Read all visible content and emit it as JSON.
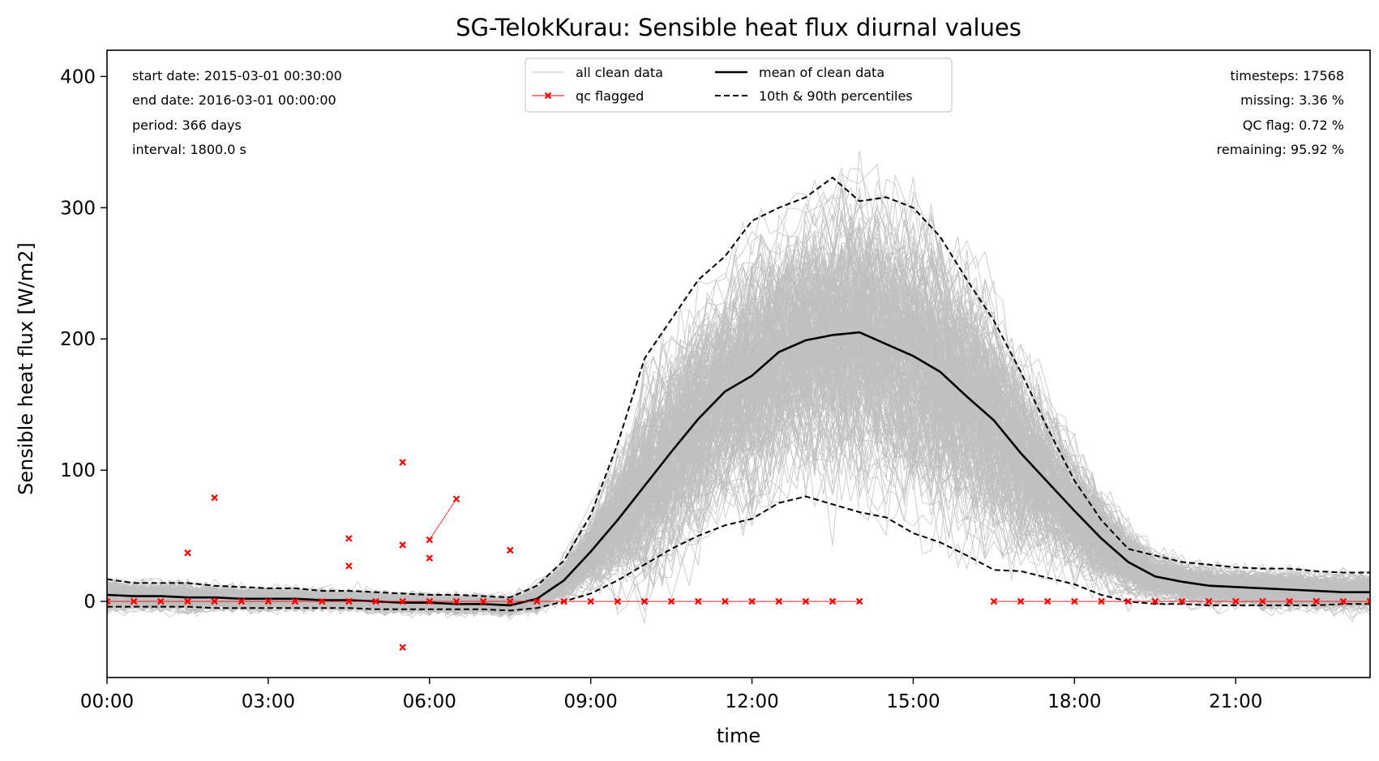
{
  "chart_data": {
    "type": "line",
    "title": "SG-TelokKurau: Sensible heat flux diurnal values",
    "xlabel": "time",
    "ylabel": "Sensible heat flux [W/m2]",
    "xlim": [
      0,
      23.5
    ],
    "ylim": [
      -58,
      420
    ],
    "x_ticks": [
      {
        "value": 0,
        "label": "00:00"
      },
      {
        "value": 3,
        "label": "03:00"
      },
      {
        "value": 6,
        "label": "06:00"
      },
      {
        "value": 9,
        "label": "09:00"
      },
      {
        "value": 12,
        "label": "12:00"
      },
      {
        "value": 15,
        "label": "15:00"
      },
      {
        "value": 18,
        "label": "18:00"
      },
      {
        "value": 21,
        "label": "21:00"
      }
    ],
    "y_ticks": [
      0,
      100,
      200,
      300,
      400
    ],
    "grid": false,
    "legend_position": "top-center",
    "colors": {
      "clean": "#c0c0c0",
      "mean": "#000000",
      "percentile": "#000000",
      "qc": "#ff0000"
    },
    "stats_left": [
      "start date: 2015-03-01 00:30:00",
      "end date: 2016-03-01 00:00:00",
      "period: 366 days",
      "interval: 1800.0 s"
    ],
    "stats_right": [
      "timesteps: 17568",
      "missing: 3.36 %",
      "QC flag: 0.72 %",
      "remaining: 95.92 %"
    ],
    "x": [
      0,
      0.5,
      1,
      1.5,
      2,
      2.5,
      3,
      3.5,
      4,
      4.5,
      5,
      5.5,
      6,
      6.5,
      7,
      7.5,
      8,
      8.5,
      9,
      9.5,
      10,
      10.5,
      11,
      11.5,
      12,
      12.5,
      13,
      13.5,
      14,
      14.5,
      15,
      15.5,
      16,
      16.5,
      17,
      17.5,
      18,
      18.5,
      19,
      19.5,
      20,
      20.5,
      21,
      21.5,
      22,
      22.5,
      23,
      23.5
    ],
    "series": [
      {
        "name": "mean of clean data",
        "style": "solid",
        "values": [
          5,
          4,
          4,
          3,
          3,
          2,
          2,
          2,
          1,
          1,
          0,
          -1,
          -1,
          -2,
          -2,
          -3,
          2,
          16,
          38,
          62,
          88,
          114,
          139,
          160,
          172,
          190,
          199,
          203,
          205,
          196,
          187,
          175,
          156,
          138,
          113,
          91,
          69,
          48,
          30,
          19,
          15,
          12,
          11,
          10,
          9,
          8,
          7,
          7
        ]
      },
      {
        "name": "10th & 90th percentiles",
        "style": "dashed",
        "values": [
          17,
          14,
          14,
          14,
          12,
          11,
          10,
          10,
          8,
          8,
          7,
          6,
          5,
          5,
          4,
          3,
          12,
          31,
          66,
          120,
          185,
          215,
          245,
          263,
          290,
          300,
          308,
          323,
          305,
          308,
          300,
          278,
          245,
          214,
          175,
          132,
          92,
          62,
          40,
          35,
          30,
          28,
          26,
          25,
          25,
          23,
          22,
          22
        ]
      },
      {
        "name": "10th & 90th percentiles (lower)",
        "style": "dashed",
        "values": [
          -4,
          -4,
          -4,
          -4,
          -5,
          -5,
          -5,
          -5,
          -5,
          -5,
          -6,
          -6,
          -6,
          -6,
          -6,
          -7,
          -5,
          0,
          6,
          16,
          28,
          40,
          50,
          58,
          63,
          75,
          80,
          74,
          68,
          64,
          52,
          45,
          35,
          24,
          23,
          18,
          13,
          5,
          0,
          -2,
          -2,
          -3,
          -3,
          -3,
          -3,
          -3,
          -2,
          -2
        ]
      }
    ],
    "qc_flagged": {
      "name": "qc flagged",
      "points": [
        [
          0,
          0
        ],
        [
          0.5,
          0
        ],
        [
          1,
          0
        ],
        [
          1.5,
          0
        ],
        [
          1.5,
          37
        ],
        [
          2,
          0
        ],
        [
          2,
          79
        ],
        [
          2.5,
          0
        ],
        [
          3,
          0
        ],
        [
          3.5,
          0
        ],
        [
          4,
          0
        ],
        [
          4.5,
          0
        ],
        [
          4.5,
          27
        ],
        [
          4.5,
          48
        ],
        [
          5,
          0
        ],
        [
          5.5,
          0
        ],
        [
          5.5,
          -35
        ],
        [
          5.5,
          43
        ],
        [
          5.5,
          106
        ],
        [
          6,
          0
        ],
        [
          6,
          33
        ],
        [
          6,
          47
        ],
        [
          6.5,
          0
        ],
        [
          6.5,
          78
        ],
        [
          7,
          0
        ],
        [
          7.5,
          0
        ],
        [
          7.5,
          39
        ],
        [
          8,
          0
        ],
        [
          8.5,
          0
        ],
        [
          9,
          0
        ],
        [
          9.5,
          0
        ],
        [
          10,
          0
        ],
        [
          10.5,
          0
        ],
        [
          11,
          0
        ],
        [
          11.5,
          0
        ],
        [
          12,
          0
        ],
        [
          12.5,
          0
        ],
        [
          13,
          0
        ],
        [
          13.5,
          0
        ],
        [
          14,
          0
        ],
        [
          16.5,
          0
        ],
        [
          17,
          0
        ],
        [
          17.5,
          0
        ],
        [
          18,
          0
        ],
        [
          18.5,
          0
        ],
        [
          19,
          0
        ],
        [
          19.5,
          0
        ],
        [
          20,
          0
        ],
        [
          20.5,
          0
        ],
        [
          21,
          0
        ],
        [
          21.5,
          0
        ],
        [
          22,
          0
        ],
        [
          22.5,
          0
        ],
        [
          23,
          0
        ],
        [
          23.5,
          0
        ]
      ]
    },
    "clean_data_label": "all clean data"
  }
}
